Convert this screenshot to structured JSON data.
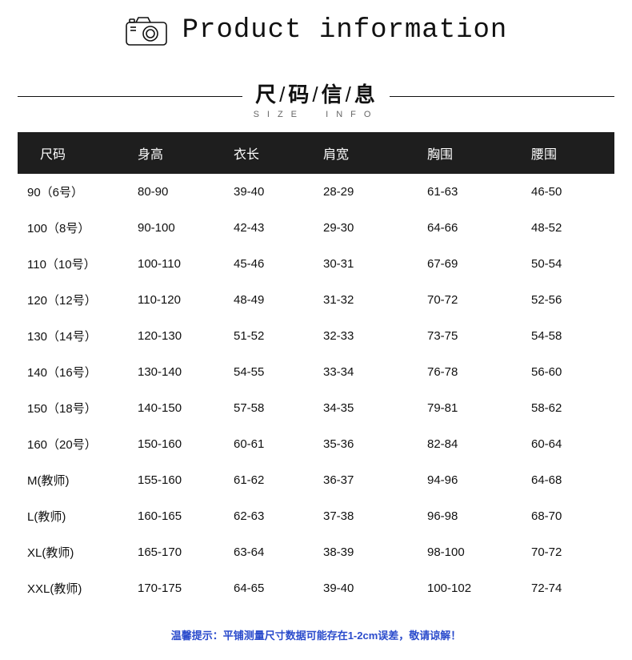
{
  "header": {
    "title": "Product information"
  },
  "section": {
    "cn_parts": [
      "尺",
      "码",
      "信",
      "息"
    ],
    "separator": "/",
    "en_left": "SIZE",
    "en_right": "INFO"
  },
  "table": {
    "columns": [
      "尺码",
      "身高",
      "衣长",
      "肩宽",
      "胸围",
      "腰围"
    ],
    "rows": [
      [
        "90（6号）",
        "80-90",
        "39-40",
        "28-29",
        "61-63",
        "46-50"
      ],
      [
        "100（8号）",
        "90-100",
        "42-43",
        "29-30",
        "64-66",
        "48-52"
      ],
      [
        "110（10号）",
        "100-110",
        "45-46",
        "30-31",
        "67-69",
        "50-54"
      ],
      [
        "120（12号）",
        "110-120",
        "48-49",
        "31-32",
        "70-72",
        "52-56"
      ],
      [
        "130（14号）",
        "120-130",
        "51-52",
        "32-33",
        "73-75",
        "54-58"
      ],
      [
        "140（16号）",
        "130-140",
        "54-55",
        "33-34",
        "76-78",
        "56-60"
      ],
      [
        "150（18号）",
        "140-150",
        "57-58",
        "34-35",
        "79-81",
        "58-62"
      ],
      [
        "160（20号）",
        "150-160",
        "60-61",
        "35-36",
        "82-84",
        "60-64"
      ],
      [
        "M(教师)",
        "155-160",
        "61-62",
        "36-37",
        "94-96",
        "64-68"
      ],
      [
        "L(教师)",
        "160-165",
        "62-63",
        "37-38",
        "96-98",
        "68-70"
      ],
      [
        "XL(教师)",
        "165-170",
        "63-64",
        "38-39",
        "98-100",
        "70-72"
      ],
      [
        "XXL(教师)",
        "170-175",
        "64-65",
        "39-40",
        "100-102",
        "72-74"
      ]
    ],
    "header_bg": "#1e1e1e",
    "header_fg": "#ffffff",
    "body_fg": "#111111",
    "font_size_header": 16,
    "font_size_body": 15
  },
  "footnote": "温馨提示：平铺测量尺寸数据可能存在1-2cm误差，敬请谅解！",
  "colors": {
    "page_bg": "#ffffff",
    "rule": "#111111",
    "subtitle": "#666666",
    "footnote": "#2a4bcc"
  }
}
